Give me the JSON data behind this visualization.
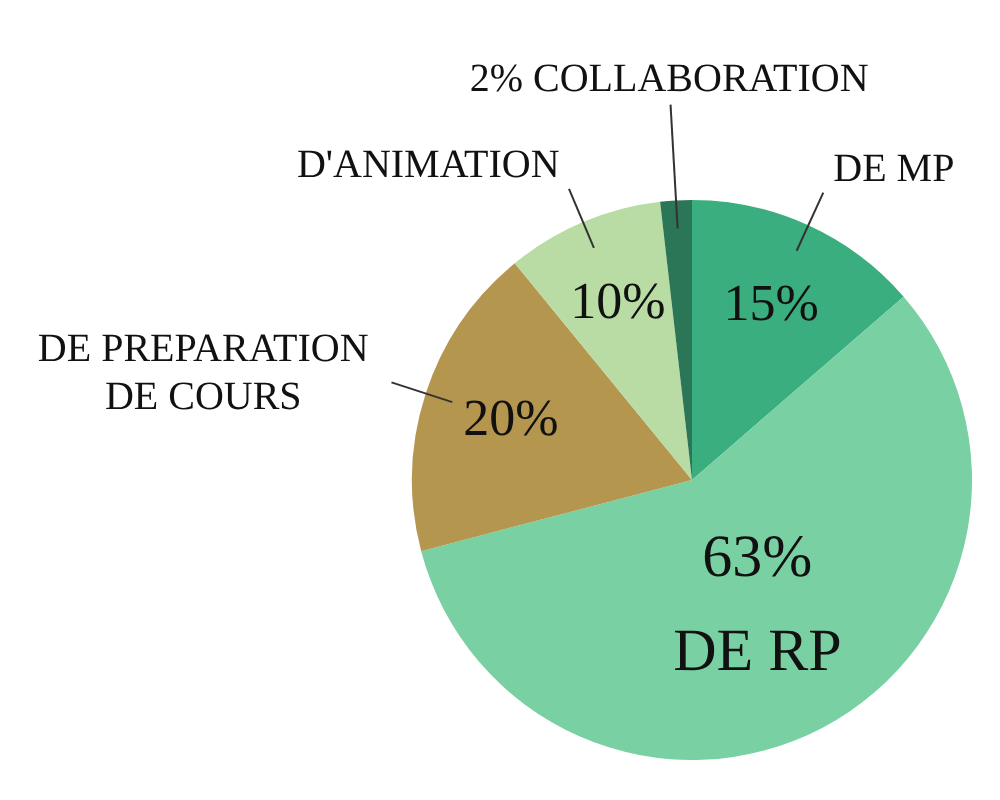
{
  "chart_data": {
    "type": "pie",
    "categories": [
      "DE MP",
      "DE RP",
      "DE PREPARATION DE COURS",
      "D'ANIMATION",
      "2% COLLABORATION"
    ],
    "values": [
      15,
      63,
      20,
      10,
      2
    ],
    "colors": [
      "#3aae7e",
      "#78d0a3",
      "#b4964f",
      "#b8dca3",
      "#2a7656"
    ],
    "value_labels": [
      "15%",
      "63%",
      "20%",
      "10%",
      null
    ]
  }
}
